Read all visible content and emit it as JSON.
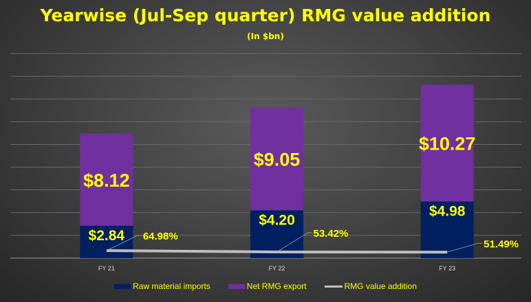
{
  "chart_data": {
    "type": "bar",
    "stacked": true,
    "title": "Yearwise (Jul-Sep quarter) RMG value addition",
    "subtitle": "(In $bn)",
    "categories": [
      "FY 21",
      "FY 22",
      "FY 23"
    ],
    "series": [
      {
        "name": "Raw material imports",
        "type": "bar",
        "values": [
          2.84,
          4.2,
          4.98
        ],
        "labels": [
          "$2.84",
          "$4.20",
          "$4.98"
        ],
        "color": "#002060"
      },
      {
        "name": "Net RMG export",
        "type": "bar",
        "values": [
          8.12,
          9.05,
          10.27
        ],
        "labels": [
          "$8.12",
          "$9.05",
          "$10.27"
        ],
        "color": "#7030a0"
      },
      {
        "name": "RMG value addition",
        "type": "line",
        "axis": "secondary",
        "values": [
          64.98,
          53.42,
          51.49
        ],
        "labels": [
          "64.98%",
          "53.42%",
          "51.49%"
        ],
        "color": "#bfbfbf"
      }
    ],
    "ylim": [
      0,
      18
    ],
    "grid": true,
    "y_axis_labels_visible": false,
    "legend": "bottom",
    "label_color": "#ffff00"
  }
}
